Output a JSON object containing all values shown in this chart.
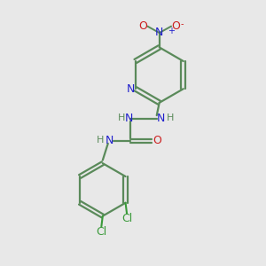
{
  "bg_color": "#e8e8e8",
  "bond_color": "#5a8a5a",
  "n_color": "#2020cc",
  "o_color": "#cc2020",
  "cl_color": "#3a9a3a",
  "figsize": [
    3.0,
    3.0
  ],
  "dpi": 100,
  "xlim": [
    0,
    10
  ],
  "ylim": [
    0,
    10
  ]
}
